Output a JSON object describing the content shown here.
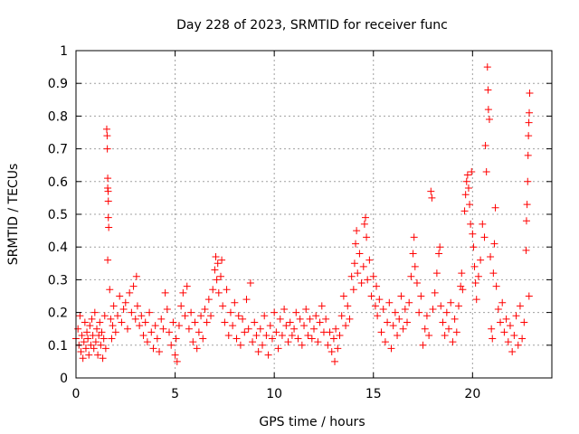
{
  "chart_data": {
    "type": "scatter",
    "title": "Day 228 of 2023, SRMTID for receiver func",
    "xlabel": "GPS time / hours",
    "ylabel": "SRMTID / TECUs",
    "xlim": [
      0,
      24
    ],
    "ylim": [
      0,
      1
    ],
    "xticks": [
      0,
      5,
      10,
      15,
      20
    ],
    "yticks": [
      0,
      0.1,
      0.2,
      0.3,
      0.4,
      0.5,
      0.6,
      0.7,
      0.8,
      0.9,
      1
    ],
    "xtick_labels": [
      "0",
      "5",
      "10",
      "15",
      "20"
    ],
    "ytick_labels": [
      "0",
      "0.1",
      "0.2",
      "0.3",
      "0.4",
      "0.5",
      "0.6",
      "0.7",
      "0.8",
      "0.9",
      "1"
    ],
    "grid": true,
    "marker": "+",
    "marker_color": "#ff0000",
    "series": [
      {
        "name": "SRMTID",
        "points": [
          [
            0.0,
            0.12
          ],
          [
            0.1,
            0.15
          ],
          [
            0.15,
            0.1
          ],
          [
            0.2,
            0.19
          ],
          [
            0.25,
            0.08
          ],
          [
            0.3,
            0.13
          ],
          [
            0.35,
            0.06
          ],
          [
            0.4,
            0.11
          ],
          [
            0.45,
            0.17
          ],
          [
            0.5,
            0.09
          ],
          [
            0.55,
            0.14
          ],
          [
            0.6,
            0.12
          ],
          [
            0.65,
            0.07
          ],
          [
            0.7,
            0.16
          ],
          [
            0.75,
            0.1
          ],
          [
            0.8,
            0.18
          ],
          [
            0.85,
            0.13
          ],
          [
            0.9,
            0.09
          ],
          [
            0.95,
            0.2
          ],
          [
            1.0,
            0.11
          ],
          [
            1.05,
            0.15
          ],
          [
            1.1,
            0.07
          ],
          [
            1.15,
            0.13
          ],
          [
            1.2,
            0.17
          ],
          [
            1.25,
            0.1
          ],
          [
            1.3,
            0.14
          ],
          [
            1.35,
            0.06
          ],
          [
            1.4,
            0.12
          ],
          [
            1.45,
            0.19
          ],
          [
            1.5,
            0.09
          ],
          [
            1.55,
            0.76
          ],
          [
            1.57,
            0.74
          ],
          [
            1.58,
            0.7
          ],
          [
            1.6,
            0.61
          ],
          [
            1.6,
            0.58
          ],
          [
            1.62,
            0.57
          ],
          [
            1.63,
            0.54
          ],
          [
            1.63,
            0.49
          ],
          [
            1.65,
            0.46
          ],
          [
            1.6,
            0.36
          ],
          [
            1.7,
            0.27
          ],
          [
            1.75,
            0.18
          ],
          [
            1.8,
            0.12
          ],
          [
            1.85,
            0.16
          ],
          [
            1.9,
            0.22
          ],
          [
            2.0,
            0.14
          ],
          [
            2.1,
            0.19
          ],
          [
            2.2,
            0.25
          ],
          [
            2.3,
            0.17
          ],
          [
            2.4,
            0.21
          ],
          [
            2.5,
            0.23
          ],
          [
            2.6,
            0.15
          ],
          [
            2.7,
            0.26
          ],
          [
            2.8,
            0.2
          ],
          [
            2.9,
            0.28
          ],
          [
            3.0,
            0.18
          ],
          [
            3.05,
            0.31
          ],
          [
            3.1,
            0.22
          ],
          [
            3.2,
            0.16
          ],
          [
            3.3,
            0.19
          ],
          [
            3.4,
            0.13
          ],
          [
            3.5,
            0.17
          ],
          [
            3.6,
            0.11
          ],
          [
            3.7,
            0.2
          ],
          [
            3.8,
            0.14
          ],
          [
            3.9,
            0.09
          ],
          [
            4.0,
            0.16
          ],
          [
            4.1,
            0.12
          ],
          [
            4.2,
            0.08
          ],
          [
            4.3,
            0.18
          ],
          [
            4.4,
            0.15
          ],
          [
            4.5,
            0.26
          ],
          [
            4.6,
            0.21
          ],
          [
            4.7,
            0.14
          ],
          [
            4.8,
            0.1
          ],
          [
            4.9,
            0.17
          ],
          [
            5.0,
            0.07
          ],
          [
            5.05,
            0.12
          ],
          [
            5.1,
            0.05
          ],
          [
            5.2,
            0.16
          ],
          [
            5.3,
            0.22
          ],
          [
            5.4,
            0.26
          ],
          [
            5.5,
            0.19
          ],
          [
            5.6,
            0.28
          ],
          [
            5.7,
            0.15
          ],
          [
            5.8,
            0.2
          ],
          [
            5.9,
            0.11
          ],
          [
            6.0,
            0.17
          ],
          [
            6.1,
            0.09
          ],
          [
            6.2,
            0.14
          ],
          [
            6.3,
            0.19
          ],
          [
            6.4,
            0.12
          ],
          [
            6.5,
            0.21
          ],
          [
            6.6,
            0.17
          ],
          [
            6.7,
            0.24
          ],
          [
            6.8,
            0.19
          ],
          [
            6.9,
            0.27
          ],
          [
            7.0,
            0.33
          ],
          [
            7.05,
            0.37
          ],
          [
            7.1,
            0.3
          ],
          [
            7.15,
            0.35
          ],
          [
            7.2,
            0.26
          ],
          [
            7.3,
            0.31
          ],
          [
            7.35,
            0.36
          ],
          [
            7.4,
            0.22
          ],
          [
            7.5,
            0.17
          ],
          [
            7.6,
            0.27
          ],
          [
            7.7,
            0.13
          ],
          [
            7.8,
            0.2
          ],
          [
            7.9,
            0.16
          ],
          [
            8.0,
            0.23
          ],
          [
            8.1,
            0.12
          ],
          [
            8.2,
            0.19
          ],
          [
            8.3,
            0.1
          ],
          [
            8.4,
            0.18
          ],
          [
            8.5,
            0.14
          ],
          [
            8.6,
            0.24
          ],
          [
            8.7,
            0.15
          ],
          [
            8.8,
            0.29
          ],
          [
            8.9,
            0.11
          ],
          [
            9.0,
            0.17
          ],
          [
            9.1,
            0.13
          ],
          [
            9.2,
            0.08
          ],
          [
            9.3,
            0.15
          ],
          [
            9.4,
            0.1
          ],
          [
            9.5,
            0.19
          ],
          [
            9.6,
            0.13
          ],
          [
            9.7,
            0.07
          ],
          [
            9.8,
            0.16
          ],
          [
            9.9,
            0.12
          ],
          [
            10.0,
            0.2
          ],
          [
            10.1,
            0.14
          ],
          [
            10.2,
            0.09
          ],
          [
            10.3,
            0.18
          ],
          [
            10.4,
            0.13
          ],
          [
            10.5,
            0.21
          ],
          [
            10.6,
            0.16
          ],
          [
            10.7,
            0.11
          ],
          [
            10.8,
            0.17
          ],
          [
            10.9,
            0.13
          ],
          [
            11.0,
            0.15
          ],
          [
            11.1,
            0.2
          ],
          [
            11.2,
            0.12
          ],
          [
            11.3,
            0.18
          ],
          [
            11.4,
            0.1
          ],
          [
            11.5,
            0.16
          ],
          [
            11.6,
            0.21
          ],
          [
            11.7,
            0.13
          ],
          [
            11.8,
            0.18
          ],
          [
            11.9,
            0.12
          ],
          [
            12.0,
            0.15
          ],
          [
            12.1,
            0.19
          ],
          [
            12.2,
            0.11
          ],
          [
            12.3,
            0.17
          ],
          [
            12.4,
            0.22
          ],
          [
            12.5,
            0.14
          ],
          [
            12.6,
            0.18
          ],
          [
            12.7,
            0.1
          ],
          [
            12.8,
            0.14
          ],
          [
            12.9,
            0.08
          ],
          [
            13.0,
            0.12
          ],
          [
            13.05,
            0.05
          ],
          [
            13.1,
            0.15
          ],
          [
            13.2,
            0.09
          ],
          [
            13.3,
            0.13
          ],
          [
            13.4,
            0.19
          ],
          [
            13.5,
            0.25
          ],
          [
            13.6,
            0.16
          ],
          [
            13.7,
            0.22
          ],
          [
            13.8,
            0.18
          ],
          [
            13.9,
            0.31
          ],
          [
            14.0,
            0.27
          ],
          [
            14.05,
            0.35
          ],
          [
            14.1,
            0.41
          ],
          [
            14.15,
            0.45
          ],
          [
            14.2,
            0.32
          ],
          [
            14.3,
            0.38
          ],
          [
            14.4,
            0.29
          ],
          [
            14.5,
            0.34
          ],
          [
            14.55,
            0.47
          ],
          [
            14.6,
            0.49
          ],
          [
            14.65,
            0.43
          ],
          [
            14.7,
            0.3
          ],
          [
            14.8,
            0.36
          ],
          [
            14.9,
            0.25
          ],
          [
            15.0,
            0.31
          ],
          [
            15.1,
            0.22
          ],
          [
            15.15,
            0.28
          ],
          [
            15.2,
            0.19
          ],
          [
            15.3,
            0.24
          ],
          [
            15.4,
            0.14
          ],
          [
            15.5,
            0.21
          ],
          [
            15.6,
            0.11
          ],
          [
            15.7,
            0.17
          ],
          [
            15.8,
            0.23
          ],
          [
            15.9,
            0.09
          ],
          [
            16.0,
            0.16
          ],
          [
            16.1,
            0.2
          ],
          [
            16.2,
            0.13
          ],
          [
            16.3,
            0.18
          ],
          [
            16.4,
            0.25
          ],
          [
            16.5,
            0.15
          ],
          [
            16.6,
            0.21
          ],
          [
            16.7,
            0.17
          ],
          [
            16.8,
            0.23
          ],
          [
            16.9,
            0.31
          ],
          [
            17.0,
            0.38
          ],
          [
            17.05,
            0.43
          ],
          [
            17.1,
            0.34
          ],
          [
            17.2,
            0.29
          ],
          [
            17.3,
            0.2
          ],
          [
            17.4,
            0.25
          ],
          [
            17.5,
            0.1
          ],
          [
            17.6,
            0.15
          ],
          [
            17.7,
            0.19
          ],
          [
            17.8,
            0.13
          ],
          [
            17.9,
            0.57
          ],
          [
            17.95,
            0.55
          ],
          [
            18.0,
            0.21
          ],
          [
            18.1,
            0.26
          ],
          [
            18.2,
            0.32
          ],
          [
            18.3,
            0.38
          ],
          [
            18.35,
            0.4
          ],
          [
            18.4,
            0.22
          ],
          [
            18.5,
            0.17
          ],
          [
            18.6,
            0.13
          ],
          [
            18.7,
            0.2
          ],
          [
            18.8,
            0.15
          ],
          [
            18.9,
            0.23
          ],
          [
            19.0,
            0.11
          ],
          [
            19.1,
            0.18
          ],
          [
            19.2,
            0.14
          ],
          [
            19.3,
            0.22
          ],
          [
            19.4,
            0.28
          ],
          [
            19.45,
            0.32
          ],
          [
            19.5,
            0.27
          ],
          [
            19.6,
            0.51
          ],
          [
            19.65,
            0.56
          ],
          [
            19.7,
            0.6
          ],
          [
            19.75,
            0.62
          ],
          [
            19.8,
            0.58
          ],
          [
            19.85,
            0.53
          ],
          [
            19.9,
            0.47
          ],
          [
            19.95,
            0.63
          ],
          [
            20.0,
            0.44
          ],
          [
            20.05,
            0.4
          ],
          [
            20.1,
            0.34
          ],
          [
            20.15,
            0.29
          ],
          [
            20.2,
            0.24
          ],
          [
            20.3,
            0.31
          ],
          [
            20.4,
            0.36
          ],
          [
            20.5,
            0.47
          ],
          [
            20.6,
            0.43
          ],
          [
            20.65,
            0.71
          ],
          [
            20.7,
            0.63
          ],
          [
            20.75,
            0.95
          ],
          [
            20.78,
            0.88
          ],
          [
            20.8,
            0.82
          ],
          [
            20.85,
            0.79
          ],
          [
            20.9,
            0.37
          ],
          [
            20.95,
            0.15
          ],
          [
            21.0,
            0.12
          ],
          [
            21.05,
            0.32
          ],
          [
            21.1,
            0.41
          ],
          [
            21.15,
            0.52
          ],
          [
            21.2,
            0.28
          ],
          [
            21.3,
            0.21
          ],
          [
            21.4,
            0.17
          ],
          [
            21.5,
            0.23
          ],
          [
            21.6,
            0.14
          ],
          [
            21.7,
            0.18
          ],
          [
            21.8,
            0.11
          ],
          [
            21.9,
            0.16
          ],
          [
            22.0,
            0.08
          ],
          [
            22.1,
            0.13
          ],
          [
            22.2,
            0.19
          ],
          [
            22.3,
            0.1
          ],
          [
            22.4,
            0.22
          ],
          [
            22.5,
            0.12
          ],
          [
            22.6,
            0.17
          ],
          [
            22.7,
            0.39
          ],
          [
            22.72,
            0.48
          ],
          [
            22.75,
            0.53
          ],
          [
            22.78,
            0.6
          ],
          [
            22.8,
            0.68
          ],
          [
            22.82,
            0.74
          ],
          [
            22.84,
            0.78
          ],
          [
            22.86,
            0.81
          ],
          [
            22.88,
            0.87
          ],
          [
            22.85,
            0.25
          ]
        ]
      }
    ]
  }
}
